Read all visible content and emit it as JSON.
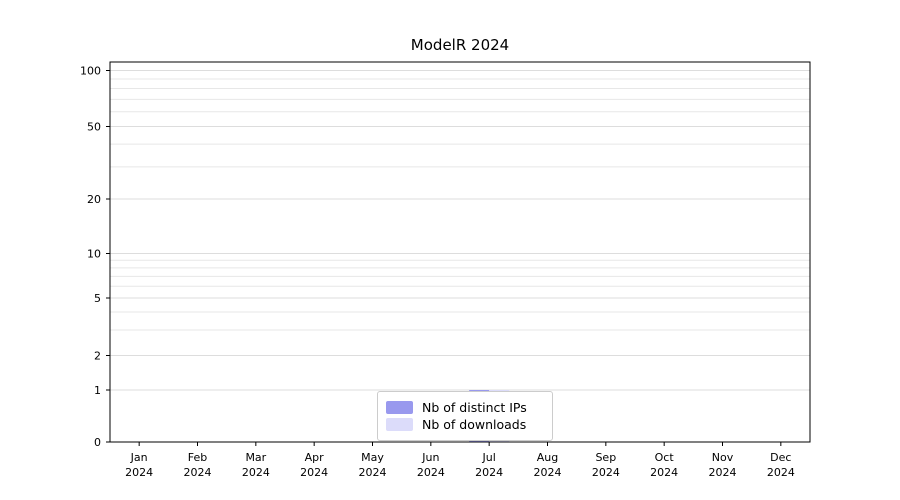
{
  "chart_data": {
    "type": "bar",
    "title": "ModelR 2024",
    "categories": [
      {
        "month": "Jan",
        "year": "2024"
      },
      {
        "month": "Feb",
        "year": "2024"
      },
      {
        "month": "Mar",
        "year": "2024"
      },
      {
        "month": "Apr",
        "year": "2024"
      },
      {
        "month": "May",
        "year": "2024"
      },
      {
        "month": "Jun",
        "year": "2024"
      },
      {
        "month": "Jul",
        "year": "2024"
      },
      {
        "month": "Aug",
        "year": "2024"
      },
      {
        "month": "Sep",
        "year": "2024"
      },
      {
        "month": "Oct",
        "year": "2024"
      },
      {
        "month": "Nov",
        "year": "2024"
      },
      {
        "month": "Dec",
        "year": "2024"
      }
    ],
    "series": [
      {
        "name": "Nb of distinct IPs",
        "color": "#9999ee",
        "values": [
          0,
          0,
          0,
          0,
          0,
          0,
          1,
          0,
          0,
          0,
          0,
          0
        ]
      },
      {
        "name": "Nb of downloads",
        "color": "#dcdcfa",
        "values": [
          0,
          0,
          0,
          0,
          0,
          0,
          1,
          0,
          0,
          0,
          0,
          0
        ]
      }
    ],
    "y_ticks": [
      100,
      50,
      20,
      10,
      5,
      2,
      1,
      0
    ],
    "ylim": [
      0,
      110
    ],
    "y_scale": "log (1-2-5 ticks), linear below 1",
    "grid": "horizontal light log gridlines",
    "legend_position": "bottom-center inside plot",
    "colors": {
      "grid_minor": "#e7e7e7",
      "grid_major": "#dddddd",
      "axis": "#000000"
    }
  }
}
